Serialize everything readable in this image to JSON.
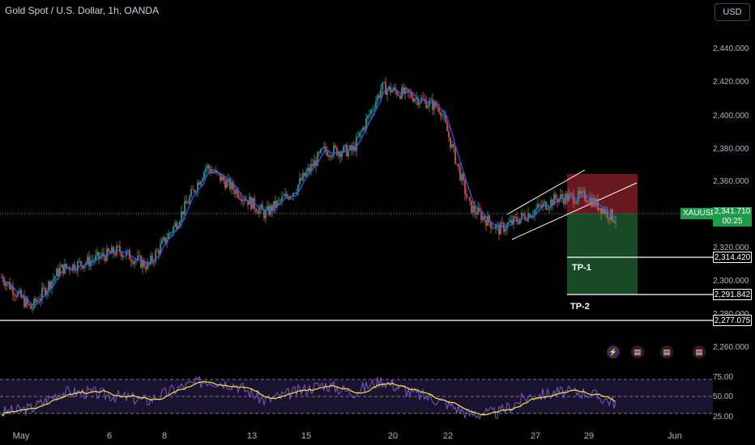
{
  "header": {
    "title": "Gold Spot / U.S. Dollar, 1h, OANDA",
    "currency_button": "USD"
  },
  "price_axis": {
    "ticks": [
      "2,440.000",
      "2,420.000",
      "2,400.000",
      "2,380.000",
      "2,360.000",
      "2,320.000",
      "2,300.000",
      "2,280.000",
      "2,260.000"
    ],
    "current_price": "2,341.710",
    "countdown": "00:25",
    "symbol": "XAUUSD"
  },
  "levels": [
    {
      "name": "TP-1",
      "value": "2,314.420"
    },
    {
      "name": "TP-2",
      "value": "2,291.842"
    },
    {
      "name": "",
      "value": "2,277.075"
    }
  ],
  "time_axis": {
    "ticks": [
      "May",
      "6",
      "8",
      "13",
      "15",
      "20",
      "22",
      "27",
      "29",
      "Jun"
    ]
  },
  "rsi_axis": {
    "ticks": [
      "75.00",
      "50.00",
      "25.00"
    ]
  },
  "events": [
    {
      "icon": "lightning-icon"
    },
    {
      "icon": "us-flag-icon"
    },
    {
      "icon": "us-flag-icon"
    },
    {
      "icon": "us-flag-icon"
    }
  ],
  "colors": {
    "up": "#26a69a",
    "down": "#ef5350",
    "ma": "#2962ff",
    "rsi": "#7e57c2",
    "rsi_ma": "#f5e642",
    "stop_zone": "#7a1c24",
    "target_zone": "#1b4d2a",
    "price_label": "#1f9c4a"
  },
  "chart_data": [
    {
      "type": "line",
      "title": "Gold Spot / U.S. Dollar, 1h, OANDA",
      "xlabel": "",
      "ylabel": "",
      "x": [
        "May 1",
        "May 2",
        "May 3",
        "May 6",
        "May 7",
        "May 8",
        "May 9",
        "May 10",
        "May 13",
        "May 14",
        "May 15",
        "May 16",
        "May 17",
        "May 20",
        "May 21",
        "May 22",
        "May 23",
        "May 24",
        "May 27",
        "May 28",
        "May 29",
        "May 30"
      ],
      "series": [
        {
          "values": [
            2305,
            2285,
            2310,
            2315,
            2322,
            2312,
            2340,
            2375,
            2360,
            2345,
            2360,
            2385,
            2385,
            2425,
            2420,
            2412,
            2350,
            2335,
            2345,
            2355,
            2356,
            2341.71
          ]
        }
      ],
      "ylim": [
        2255,
        2460
      ],
      "annotations": [
        "TP-1 2,314.420",
        "TP-2 2,291.842",
        "2,277.075"
      ],
      "grid": false
    },
    {
      "type": "line",
      "title": "",
      "x": [
        "May 1",
        "May 2",
        "May 3",
        "May 6",
        "May 7",
        "May 8",
        "May 9",
        "May 10",
        "May 13",
        "May 14",
        "May 15",
        "May 16",
        "May 17",
        "May 20",
        "May 21",
        "May 22",
        "May 23",
        "May 24",
        "May 27",
        "May 28",
        "May 29",
        "May 30"
      ],
      "series": [
        {
          "values": [
            30,
            35,
            55,
            55,
            50,
            45,
            60,
            70,
            65,
            45,
            55,
            65,
            55,
            70,
            55,
            45,
            28,
            30,
            50,
            55,
            55,
            42
          ]
        }
      ],
      "ylim": [
        20,
        80
      ],
      "guides": [
        75,
        50,
        25
      ]
    }
  ]
}
